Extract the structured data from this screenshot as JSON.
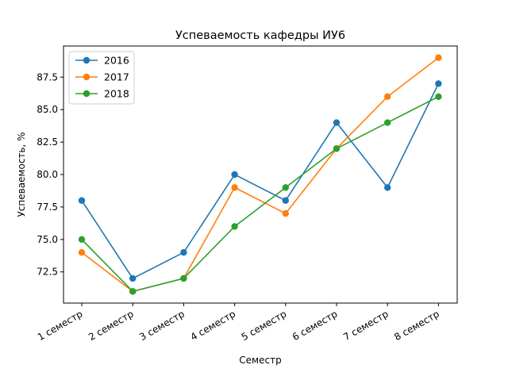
{
  "chart_data": {
    "type": "line",
    "title": "Успеваемость кафедры ИУ6",
    "xlabel": "Семестр",
    "ylabel": "Успеваемость, %",
    "categories": [
      "1 семестр",
      "2 семестр",
      "3 семестр",
      "4 семестр",
      "5 семестр",
      "6 семестр",
      "7 семестр",
      "8 семестр"
    ],
    "series": [
      {
        "name": "2016",
        "color": "#1f77b4",
        "values": [
          78,
          72,
          74,
          80,
          78,
          84,
          79,
          87
        ]
      },
      {
        "name": "2017",
        "color": "#ff7f0e",
        "values": [
          74,
          71,
          72,
          79,
          77,
          82,
          86,
          89
        ]
      },
      {
        "name": "2018",
        "color": "#2ca02c",
        "values": [
          75,
          71,
          72,
          76,
          79,
          82,
          84,
          86
        ]
      }
    ],
    "yticks": [
      "72.5",
      "75.0",
      "77.5",
      "80.0",
      "82.5",
      "85.0",
      "87.5"
    ],
    "ylim": [
      70.1,
      89.9
    ],
    "grid": false,
    "legend_position": "top-left"
  }
}
